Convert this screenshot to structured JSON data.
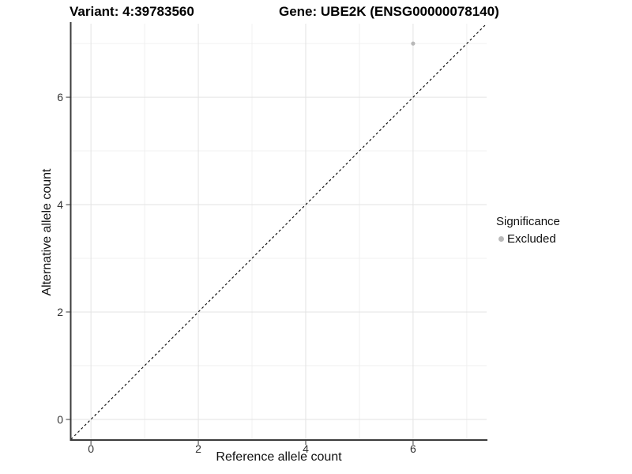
{
  "header": {
    "title_left": "Variant: 4:39783560",
    "title_right": "Gene: UBE2K (ENSG00000078140)"
  },
  "chart_data": {
    "type": "scatter",
    "title": "Variant: 4:39783560    Gene: UBE2K (ENSG00000078140)",
    "xlabel": "Reference allele count",
    "ylabel": "Alternative allele count",
    "xlim": [
      -0.37,
      7.37
    ],
    "ylim": [
      -0.37,
      7.37
    ],
    "x_ticks": [
      0,
      2,
      4,
      6
    ],
    "y_ticks": [
      0,
      2,
      4,
      6
    ],
    "x_minor_ticks": [
      1,
      3,
      5,
      7
    ],
    "y_minor_ticks": [
      1,
      3,
      5,
      7
    ],
    "grid": "major+minor",
    "legend_position": "right",
    "series": [
      {
        "name": "Excluded",
        "color": "#b9b9b9",
        "points": [
          {
            "x": 6,
            "y": 7
          }
        ]
      }
    ],
    "reference_line": {
      "type": "identity y=x",
      "style": "dashed",
      "color": "#000000"
    },
    "colors": {
      "grid_major": "#e3e3e3",
      "grid_minor": "#f0f0f0",
      "axis_line": "#3c3c3c",
      "tick_mark": "#666666",
      "tick_label": "#333333"
    }
  },
  "legend": {
    "title": "Significance",
    "entries": [
      {
        "label": "Excluded",
        "color": "#b9b9b9"
      }
    ]
  }
}
